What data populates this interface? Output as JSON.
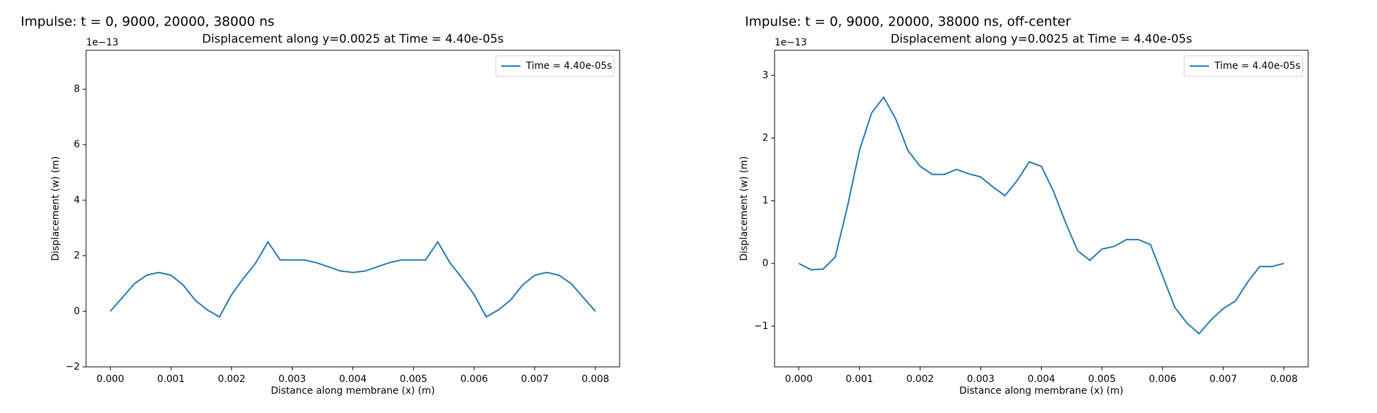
{
  "chart_data": [
    {
      "type": "line",
      "suptitle": "Impulse: t = 0, 9000, 20000, 38000 ns",
      "title": "Displacement along y=0.0025 at Time = 4.40e-05s",
      "xlabel": "Distance along membrane (x) (m)",
      "ylabel": "Displacement (w) (m)",
      "y_offset_label": "1e−13",
      "legend": "upper right",
      "x": [
        0,
        0.0002,
        0.0004,
        0.0006,
        0.0008,
        0.001,
        0.0012,
        0.0014,
        0.0016,
        0.0018,
        0.002,
        0.0022,
        0.0024,
        0.0026,
        0.0028,
        0.003,
        0.0032,
        0.0034,
        0.0036,
        0.0038,
        0.004,
        0.0042,
        0.0044,
        0.0046,
        0.0048,
        0.005,
        0.0052,
        0.0054,
        0.0056,
        0.0058,
        0.006,
        0.0062,
        0.0064,
        0.0066,
        0.0068,
        0.007,
        0.0072,
        0.0074,
        0.0076,
        0.0078,
        0.008
      ],
      "series": [
        {
          "name": "Time = 4.40e-05s",
          "color": "#1f77b4",
          "values": [
            0,
            0.5,
            1.0,
            1.3,
            1.4,
            1.3,
            0.95,
            0.4,
            0.05,
            -0.2,
            0.6,
            1.2,
            1.75,
            2.5,
            1.85,
            1.85,
            1.85,
            1.75,
            1.6,
            1.45,
            1.4,
            1.45,
            1.6,
            1.75,
            1.85,
            1.85,
            1.85,
            2.5,
            1.75,
            1.2,
            0.6,
            -0.2,
            0.05,
            0.4,
            0.95,
            1.3,
            1.4,
            1.3,
            1.0,
            0.5,
            0
          ]
        }
      ],
      "xlim": [
        -0.0004,
        0.0084
      ],
      "xticks": [
        {
          "value": 0,
          "label": "0.000"
        },
        {
          "value": 0.001,
          "label": "0.001"
        },
        {
          "value": 0.002,
          "label": "0.002"
        },
        {
          "value": 0.003,
          "label": "0.003"
        },
        {
          "value": 0.004,
          "label": "0.004"
        },
        {
          "value": 0.005,
          "label": "0.005"
        },
        {
          "value": 0.006,
          "label": "0.006"
        },
        {
          "value": 0.007,
          "label": "0.007"
        },
        {
          "value": 0.008,
          "label": "0.008"
        }
      ],
      "ylim": [
        -2,
        9.4
      ],
      "yticks": [
        {
          "value": -2,
          "label": "−2"
        },
        0,
        2,
        4,
        6,
        8
      ],
      "grid": false
    },
    {
      "type": "line",
      "suptitle": "Impulse: t = 0, 9000, 20000, 38000 ns, off-center",
      "title": "Displacement along y=0.0025 at Time = 4.40e-05s",
      "xlabel": "Distance along membrane (x) (m)",
      "ylabel": "Displacement (w) (m)",
      "y_offset_label": "1e−13",
      "legend": "upper right",
      "x": [
        0,
        0.0002,
        0.0004,
        0.0006,
        0.0008,
        0.001,
        0.0012,
        0.0014,
        0.0016,
        0.0018,
        0.002,
        0.0022,
        0.0024,
        0.0026,
        0.0028,
        0.003,
        0.0032,
        0.0034,
        0.0036,
        0.0038,
        0.004,
        0.0042,
        0.0044,
        0.0046,
        0.0048,
        0.005,
        0.0052,
        0.0054,
        0.0056,
        0.0058,
        0.006,
        0.0062,
        0.0064,
        0.0066,
        0.0068,
        0.007,
        0.0072,
        0.0074,
        0.0076,
        0.0078,
        0.008
      ],
      "series": [
        {
          "name": "Time = 4.40e-05s",
          "color": "#1f77b4",
          "values": [
            0,
            -0.1,
            -0.09,
            0.1,
            0.9,
            1.8,
            2.4,
            2.65,
            2.3,
            1.8,
            1.55,
            1.42,
            1.42,
            1.5,
            1.43,
            1.38,
            1.22,
            1.08,
            1.32,
            1.62,
            1.55,
            1.15,
            0.65,
            0.2,
            0.05,
            0.23,
            0.27,
            0.38,
            0.38,
            0.3,
            -0.2,
            -0.7,
            -0.95,
            -1.12,
            -0.9,
            -0.72,
            -0.6,
            -0.3,
            -0.05,
            -0.05,
            0
          ]
        }
      ],
      "xlim": [
        -0.0004,
        0.0084
      ],
      "xticks": [
        {
          "value": 0,
          "label": "0.000"
        },
        {
          "value": 0.001,
          "label": "0.001"
        },
        {
          "value": 0.002,
          "label": "0.002"
        },
        {
          "value": 0.003,
          "label": "0.003"
        },
        {
          "value": 0.004,
          "label": "0.004"
        },
        {
          "value": 0.005,
          "label": "0.005"
        },
        {
          "value": 0.006,
          "label": "0.006"
        },
        {
          "value": 0.007,
          "label": "0.007"
        },
        {
          "value": 0.008,
          "label": "0.008"
        }
      ],
      "ylim": [
        -1.65,
        3.4
      ],
      "yticks": [
        {
          "value": -1,
          "label": "−1"
        },
        0,
        1,
        2,
        3
      ],
      "grid": false
    }
  ]
}
